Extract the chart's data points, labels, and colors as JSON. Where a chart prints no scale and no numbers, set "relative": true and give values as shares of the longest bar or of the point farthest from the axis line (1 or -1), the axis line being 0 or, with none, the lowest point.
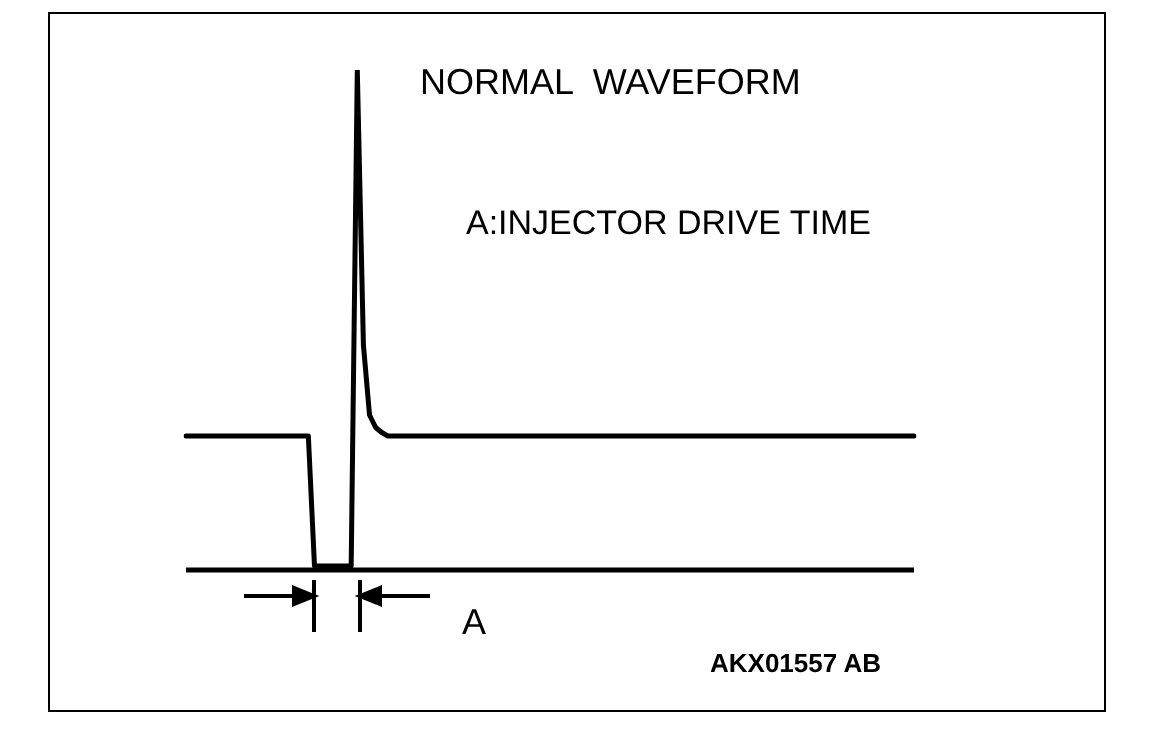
{
  "chart_data": {
    "type": "line",
    "relative": true,
    "title": "NORMAL  WAVEFORM",
    "annotations": [
      "A:INJECTOR DRIVE TIME",
      "A",
      "AKX01557 AB"
    ],
    "categories": [
      null,
      null,
      null,
      null,
      null,
      null,
      null,
      null,
      null,
      null,
      null,
      null,
      null,
      null,
      null,
      null,
      null,
      null,
      null,
      null,
      null,
      null,
      null,
      null,
      null,
      null,
      null,
      null,
      null,
      null,
      null,
      null,
      null,
      null,
      null,
      null,
      null,
      null,
      null,
      null,
      null,
      null,
      null,
      null,
      null,
      null,
      null,
      null,
      null,
      null,
      null,
      null,
      null,
      null,
      null,
      null,
      null,
      null,
      null,
      null,
      null,
      null,
      null,
      null,
      null,
      null,
      null,
      null,
      null,
      null,
      null,
      null,
      null,
      null,
      null,
      null,
      null,
      null,
      null,
      null,
      null,
      null,
      null,
      null,
      null,
      null,
      null,
      null,
      null,
      null,
      null,
      null,
      null,
      null,
      null,
      null,
      null,
      null,
      null,
      null,
      null,
      null,
      null,
      null,
      null,
      null,
      null,
      null,
      null,
      null,
      null,
      null,
      null,
      null,
      null,
      null,
      null,
      null,
      null,
      null
    ],
    "series": [
      {
        "color": "#000000",
        "values": [
          0.268,
          0.268,
          0.268,
          0.268,
          0.268,
          0.268,
          0.268,
          0.268,
          0.268,
          0.268,
          0.268,
          0.268,
          0.268,
          0.268,
          0.268,
          0.268,
          0.268,
          0.268,
          0.268,
          0.268,
          0.268,
          0.008,
          0.008,
          0.008,
          0.008,
          0.008,
          0.008,
          0.008,
          1,
          0.45,
          0.31,
          0.285,
          0.275,
          0.268,
          0.268,
          0.268,
          0.268,
          0.268,
          0.268,
          0.268,
          0.268,
          0.268,
          0.268,
          0.268,
          0.268,
          0.268,
          0.268,
          0.268,
          0.268,
          0.268,
          0.268,
          0.268,
          0.268,
          0.268,
          0.268,
          0.268,
          0.268,
          0.268,
          0.268,
          0.268,
          0.268,
          0.268,
          0.268,
          0.268,
          0.268,
          0.268,
          0.268,
          0.268,
          0.268,
          0.268,
          0.268,
          0.268,
          0.268,
          0.268,
          0.268,
          0.268,
          0.268,
          0.268,
          0.268,
          0.268,
          0.268,
          0.268,
          0.268,
          0.268,
          0.268,
          0.268,
          0.268,
          0.268,
          0.268,
          0.268,
          0.268,
          0.268,
          0.268,
          0.268,
          0.268,
          0.268,
          0.268,
          0.268,
          0.268,
          0.268,
          0.268,
          0.268,
          0.268,
          0.268,
          0.268,
          0.268,
          0.268,
          0.268,
          0.268,
          0.268,
          0.268,
          0.268,
          0.268,
          0.268,
          0.268,
          0.268,
          0.268,
          0.268,
          0.268,
          0.268
        ]
      }
    ],
    "legend": false,
    "marker": "none",
    "line_style": "solid"
  }
}
